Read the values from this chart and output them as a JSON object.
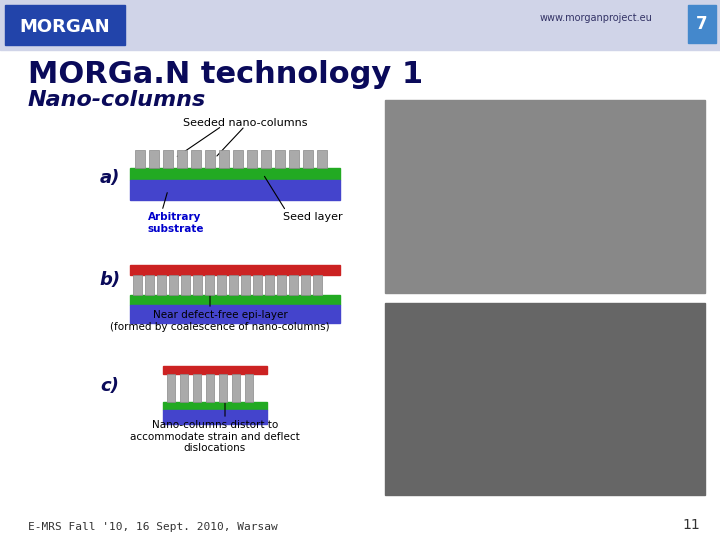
{
  "slide_bg": "#ffffff",
  "header_bg": "#d0d4e8",
  "title_text": "MORGa.N technology 1",
  "subtitle_text": "Nano-columns",
  "url_text": "www.morganproject.eu",
  "footer_text": "E-MRS Fall '10, 16 Sept. 2010, Warsaw",
  "page_num": "11",
  "title_color": "#0a0a5a",
  "subtitle_color": "#0a0a5a",
  "label_a": "a)",
  "label_b": "b)",
  "label_c": "c)",
  "text_seeded": "Seeded nano-columns",
  "text_arbitrary": "Arbitrary\nsubstrate",
  "text_seed_layer": "Seed layer",
  "text_near_defect": "Near defect-free epi-layer\n(formed by coalescence of nano-columns)",
  "text_nano_distort": "Nano-columns distort to\naccommodate strain and deflect\ndislocations",
  "col_blue": "#4444cc",
  "col_green": "#22aa22",
  "col_red": "#cc2222",
  "col_gray": "#aaaaaa",
  "morgan_logo_bg": "#2244aa"
}
